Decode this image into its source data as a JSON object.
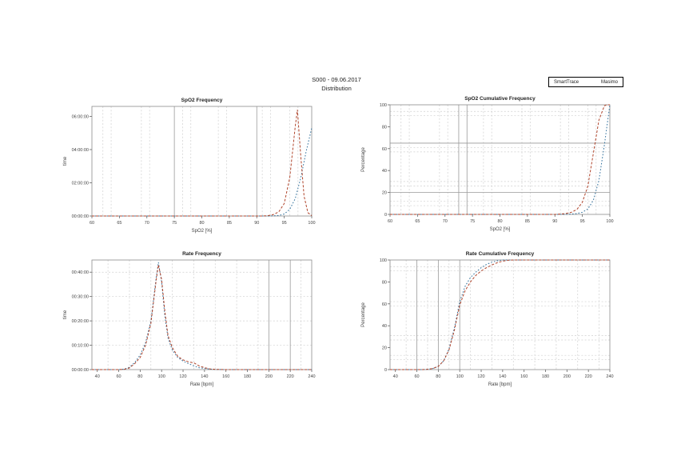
{
  "page": {
    "background": "#ffffff"
  },
  "header": {
    "study_id_date": "S000 - 09.06.2017",
    "subtitle": "Distribution"
  },
  "legend": {
    "entries": [
      {
        "label": "SmartTrace",
        "color": "#30709c"
      },
      {
        "label": "Masimo",
        "color": "#b0452c"
      }
    ]
  },
  "chart_data": [
    {
      "type": "line",
      "title": "SpO2 Frequency",
      "xlabel": "SpO2 [%]",
      "ylabel": "time",
      "xlim": [
        60,
        100
      ],
      "ylim": [
        0,
        6.6
      ],
      "xticks": [
        60,
        65,
        70,
        75,
        80,
        85,
        90,
        95,
        100
      ],
      "yticks": [
        {
          "v": 0,
          "label": "00:00:00"
        },
        {
          "v": 2,
          "label": "02:00:00"
        },
        {
          "v": 4,
          "label": "04:00:00"
        },
        {
          "v": 6,
          "label": "06:00:00"
        }
      ],
      "grid": {
        "vdash": [
          62,
          63.5,
          69,
          70.5,
          76.5,
          78,
          83,
          84.5,
          91,
          92.5,
          96,
          97.5
        ],
        "hdash": [],
        "vsolid": [
          75,
          90
        ],
        "hsolid": []
      },
      "series": [
        {
          "name": "SmartTrace",
          "color": "#30709c",
          "dash": "1.6,2.2",
          "points": [
            [
              60,
              0
            ],
            [
              92,
              0
            ],
            [
              93,
              0.01
            ],
            [
              94,
              0.03
            ],
            [
              95,
              0.12
            ],
            [
              96,
              0.4
            ],
            [
              97,
              1.05
            ],
            [
              98,
              2.3
            ],
            [
              99,
              3.9
            ],
            [
              100,
              5.3
            ]
          ]
        },
        {
          "name": "Masimo",
          "color": "#b0452c",
          "dash": "3,2",
          "points": [
            [
              60,
              0
            ],
            [
              91,
              0
            ],
            [
              92,
              0.02
            ],
            [
              93,
              0.08
            ],
            [
              94,
              0.25
            ],
            [
              95,
              0.75
            ],
            [
              96,
              2.3
            ],
            [
              97,
              5.4
            ],
            [
              97.4,
              6.4
            ],
            [
              98,
              3.6
            ],
            [
              98.6,
              1.2
            ],
            [
              99.3,
              0.2
            ],
            [
              100,
              0.02
            ]
          ]
        }
      ]
    },
    {
      "type": "line",
      "title": "SpO2 Cumulative Frequency",
      "xlabel": "SpO2 [%]",
      "ylabel": "Percentage",
      "xlim": [
        60,
        100
      ],
      "ylim": [
        0,
        100
      ],
      "xticks": [
        60,
        65,
        70,
        75,
        80,
        85,
        90,
        95,
        100
      ],
      "yticks": [
        {
          "v": 0,
          "label": "0"
        },
        {
          "v": 20,
          "label": "20"
        },
        {
          "v": 40,
          "label": "40"
        },
        {
          "v": 60,
          "label": "60"
        },
        {
          "v": 80,
          "label": "80"
        },
        {
          "v": 100,
          "label": "100"
        }
      ],
      "grid": {
        "vdash": [
          62,
          63.5,
          69,
          70.5,
          77,
          78.5,
          84,
          85.5,
          91,
          92.5,
          96,
          97.5
        ],
        "hdash": [
          8,
          12,
          26,
          30,
          57,
          61,
          90,
          94
        ],
        "vsolid": [
          72.5,
          74
        ],
        "hsolid": [
          20,
          65
        ]
      },
      "series": [
        {
          "name": "SmartTrace",
          "color": "#30709c",
          "dash": "1.6,2.2",
          "points": [
            [
              60,
              0
            ],
            [
              92,
              0
            ],
            [
              93,
              0.3
            ],
            [
              94,
              0.8
            ],
            [
              95,
              2
            ],
            [
              96,
              5
            ],
            [
              97,
              13
            ],
            [
              98,
              31
            ],
            [
              99,
              63
            ],
            [
              100,
              100
            ]
          ]
        },
        {
          "name": "Masimo",
          "color": "#b0452c",
          "dash": "3,2",
          "points": [
            [
              60,
              0
            ],
            [
              90,
              0
            ],
            [
              91,
              0.3
            ],
            [
              92,
              0.8
            ],
            [
              93,
              2
            ],
            [
              94,
              4.5
            ],
            [
              95,
              11
            ],
            [
              96,
              26
            ],
            [
              97,
              56
            ],
            [
              98,
              86
            ],
            [
              99,
              99
            ],
            [
              99.4,
              100
            ],
            [
              100,
              100
            ]
          ]
        }
      ]
    },
    {
      "type": "line",
      "title": "Rate Frequency",
      "xlabel": "Rate [bpm]",
      "ylabel": "time",
      "xlim": [
        35,
        240
      ],
      "ylim": [
        0,
        45
      ],
      "xticks": [
        40,
        60,
        80,
        100,
        120,
        140,
        160,
        180,
        200,
        220,
        240
      ],
      "yticks": [
        {
          "v": 0,
          "label": "00:00:00"
        },
        {
          "v": 10,
          "label": "00:10:00"
        },
        {
          "v": 20,
          "label": "00:20:00"
        },
        {
          "v": 30,
          "label": "00:30:00"
        },
        {
          "v": 40,
          "label": "00:40:00"
        }
      ],
      "grid": {
        "vdash": [
          50,
          70,
          90,
          110,
          130,
          150,
          170,
          190,
          230
        ],
        "hdash": [
          10,
          20,
          30,
          40
        ],
        "vsolid": [
          200,
          220
        ],
        "hsolid": []
      },
      "series": [
        {
          "name": "SmartTrace",
          "color": "#30709c",
          "dash": "1.6,2.2",
          "points": [
            [
              35,
              0
            ],
            [
              60,
              0
            ],
            [
              65,
              0.2
            ],
            [
              70,
              1
            ],
            [
              75,
              3
            ],
            [
              80,
              6
            ],
            [
              85,
              11
            ],
            [
              90,
              20
            ],
            [
              95,
              38
            ],
            [
              97,
              44
            ],
            [
              100,
              36
            ],
            [
              103,
              22
            ],
            [
              106,
              13
            ],
            [
              110,
              8
            ],
            [
              115,
              5
            ],
            [
              120,
              3.5
            ],
            [
              125,
              2.5
            ],
            [
              130,
              1.5
            ],
            [
              135,
              0.8
            ],
            [
              140,
              0.5
            ],
            [
              145,
              0.2
            ],
            [
              150,
              0.05
            ],
            [
              160,
              0
            ],
            [
              240,
              0
            ]
          ]
        },
        {
          "name": "Masimo",
          "color": "#b0452c",
          "dash": "3,2",
          "points": [
            [
              35,
              0
            ],
            [
              60,
              0
            ],
            [
              65,
              0.1
            ],
            [
              70,
              0.7
            ],
            [
              75,
              2.5
            ],
            [
              80,
              5
            ],
            [
              85,
              10
            ],
            [
              90,
              19
            ],
            [
              95,
              37
            ],
            [
              97,
              43
            ],
            [
              100,
              37
            ],
            [
              103,
              24
            ],
            [
              106,
              14
            ],
            [
              110,
              9
            ],
            [
              115,
              5.5
            ],
            [
              120,
              4
            ],
            [
              125,
              3.2
            ],
            [
              130,
              2.8
            ],
            [
              135,
              1.5
            ],
            [
              140,
              0.8
            ],
            [
              145,
              0.3
            ],
            [
              150,
              0.1
            ],
            [
              160,
              0
            ],
            [
              240,
              0
            ]
          ]
        }
      ]
    },
    {
      "type": "line",
      "title": "Rate Cumulative Frequency",
      "xlabel": "Rate [bpm]",
      "ylabel": "Percentage",
      "xlim": [
        35,
        240
      ],
      "ylim": [
        0,
        100
      ],
      "xticks": [
        40,
        60,
        80,
        100,
        120,
        140,
        160,
        180,
        200,
        220,
        240
      ],
      "yticks": [
        {
          "v": 0,
          "label": "0"
        },
        {
          "v": 20,
          "label": "20"
        },
        {
          "v": 40,
          "label": "40"
        },
        {
          "v": 60,
          "label": "60"
        },
        {
          "v": 80,
          "label": "80"
        },
        {
          "v": 100,
          "label": "100"
        }
      ],
      "grid": {
        "vdash": [
          50,
          70,
          90,
          110,
          130,
          150,
          170,
          190,
          210,
          230
        ],
        "hdash": [
          9,
          13,
          27,
          31,
          58,
          62,
          90,
          94
        ],
        "vsolid": [
          60,
          80,
          100
        ],
        "hsolid": []
      },
      "series": [
        {
          "name": "SmartTrace",
          "color": "#30709c",
          "dash": "1.6,2.2",
          "points": [
            [
              35,
              0
            ],
            [
              65,
              0
            ],
            [
              70,
              0.3
            ],
            [
              75,
              1
            ],
            [
              80,
              3
            ],
            [
              85,
              8
            ],
            [
              90,
              19
            ],
            [
              95,
              38
            ],
            [
              100,
              62
            ],
            [
              105,
              76
            ],
            [
              110,
              84
            ],
            [
              115,
              89
            ],
            [
              120,
              93
            ],
            [
              125,
              96
            ],
            [
              130,
              98
            ],
            [
              135,
              99.3
            ],
            [
              140,
              100
            ],
            [
              240,
              100
            ]
          ]
        },
        {
          "name": "Masimo",
          "color": "#b0452c",
          "dash": "3,2",
          "points": [
            [
              35,
              0
            ],
            [
              65,
              0
            ],
            [
              70,
              0.3
            ],
            [
              75,
              1
            ],
            [
              80,
              3
            ],
            [
              85,
              8
            ],
            [
              90,
              18
            ],
            [
              95,
              36
            ],
            [
              100,
              59
            ],
            [
              105,
              72
            ],
            [
              110,
              80
            ],
            [
              115,
              86
            ],
            [
              120,
              90
            ],
            [
              125,
              93
            ],
            [
              130,
              95.5
            ],
            [
              135,
              97.5
            ],
            [
              140,
              99
            ],
            [
              145,
              99.7
            ],
            [
              150,
              100
            ],
            [
              240,
              100
            ]
          ]
        }
      ]
    }
  ]
}
